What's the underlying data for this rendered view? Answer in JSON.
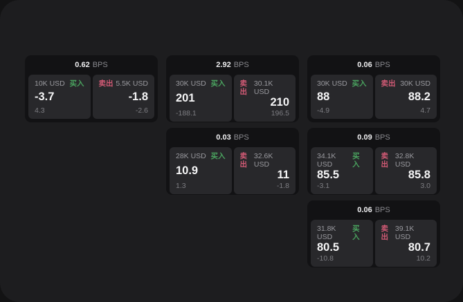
{
  "labels": {
    "buy": "买入",
    "sell": "卖出",
    "bps": "BPS"
  },
  "colors": {
    "buy_green": "#4aa35f",
    "sell_pink": "#d25a75",
    "window_bg": "#1d1d1f",
    "card_bg": "#121214",
    "panel_bg": "#28282b"
  },
  "cards": [
    {
      "bps": "0.62",
      "buy": {
        "amount": "10K USD",
        "value": "-3.7",
        "sub": "4.3"
      },
      "sell": {
        "amount": "5.5K USD",
        "value": "-1.8",
        "sub": "-2.6"
      }
    },
    {
      "bps": "2.92",
      "buy": {
        "amount": "30K USD",
        "value": "201",
        "sub": "-188.1"
      },
      "sell": {
        "amount": "30.1K USD",
        "value": "210",
        "sub": "196.5"
      }
    },
    {
      "bps": "0.06",
      "buy": {
        "amount": "30K USD",
        "value": "88",
        "sub": "-4.9"
      },
      "sell": {
        "amount": "30K USD",
        "value": "88.2",
        "sub": "4.7"
      }
    },
    {
      "bps": "0.03",
      "buy": {
        "amount": "28K USD",
        "value": "10.9",
        "sub": "1.3"
      },
      "sell": {
        "amount": "32.6K USD",
        "value": "11",
        "sub": "-1.8"
      }
    },
    {
      "bps": "0.09",
      "buy": {
        "amount": "34.1K USD",
        "value": "85.5",
        "sub": "-3.1"
      },
      "sell": {
        "amount": "32.8K USD",
        "value": "85.8",
        "sub": "3.0"
      }
    },
    {
      "bps": "0.06",
      "buy": {
        "amount": "31.8K USD",
        "value": "80.5",
        "sub": "-10.8"
      },
      "sell": {
        "amount": "39.1K USD",
        "value": "80.7",
        "sub": "10.2"
      }
    }
  ]
}
